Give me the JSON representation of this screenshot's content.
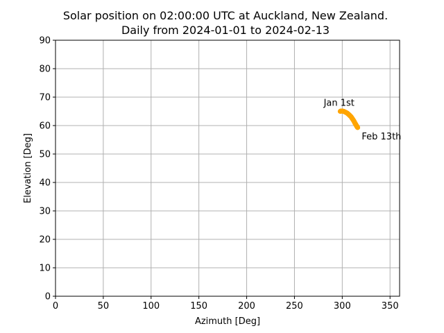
{
  "chart_data": {
    "type": "scatter",
    "title_line1": "Solar position on 02:00:00 UTC at Auckland, New Zealand.",
    "title_line2": "Daily from 2024-01-01 to 2024-02-13",
    "xlabel": "Azimuth [Deg]",
    "ylabel": "Elevation [Deg]",
    "xlim": [
      0,
      360
    ],
    "ylim": [
      0,
      90
    ],
    "xticks": [
      0,
      50,
      100,
      150,
      200,
      250,
      300,
      350
    ],
    "yticks": [
      0,
      10,
      20,
      30,
      40,
      50,
      60,
      70,
      80,
      90
    ],
    "grid": true,
    "marker_color": "#ffa500",
    "x": [
      297.9,
      298.5,
      299.1,
      299.7,
      300.3,
      300.9,
      301.5,
      302.1,
      302.7,
      303.3,
      303.9,
      304.5,
      305.0,
      305.5,
      306.0,
      306.5,
      307.0,
      307.5,
      308.0,
      308.5,
      309.0,
      309.4,
      309.8,
      310.2,
      310.6,
      311.0,
      311.4,
      311.8,
      312.2,
      312.5,
      312.8,
      313.1,
      313.4,
      313.7,
      314.0,
      314.3,
      314.6,
      314.9,
      315.1,
      315.3,
      315.5,
      315.7,
      315.9,
      316.1
    ],
    "y": [
      65.0,
      65.1,
      65.1,
      65.1,
      65.1,
      65.0,
      65.0,
      64.9,
      64.8,
      64.7,
      64.6,
      64.5,
      64.4,
      64.3,
      64.1,
      64.0,
      63.8,
      63.7,
      63.5,
      63.3,
      63.2,
      63.0,
      62.8,
      62.6,
      62.4,
      62.2,
      62.0,
      61.8,
      61.6,
      61.4,
      61.2,
      61.0,
      60.8,
      60.6,
      60.5,
      60.3,
      60.1,
      60.0,
      59.8,
      59.7,
      59.6,
      59.5,
      59.4,
      59.3
    ],
    "annotations": [
      {
        "text": "Jan 1st",
        "x": 298,
        "y": 65
      },
      {
        "text": "Feb 13th",
        "x": 316,
        "y": 59.5
      }
    ]
  }
}
